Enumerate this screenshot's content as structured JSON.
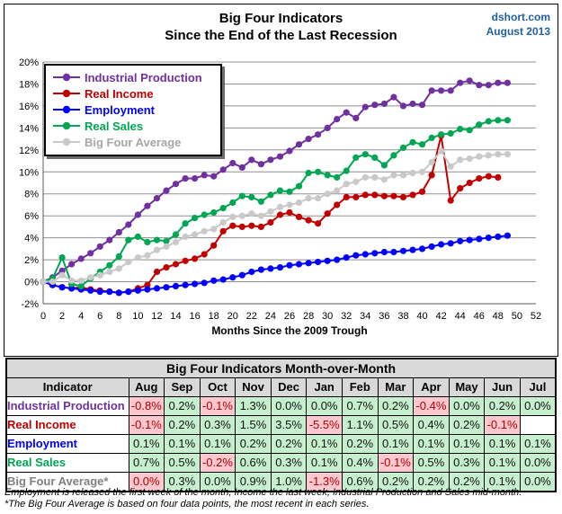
{
  "header": {
    "title_line1": "Big Four Indicators",
    "title_line2": "Since the End of the Last Recession",
    "source": "dshort.com",
    "date": "August 2013"
  },
  "chart_data": {
    "type": "line",
    "title": "Big Four Indicators Since the End of the Last Recession",
    "xlabel": "Months Since the 2009 Trough",
    "ylabel": "",
    "xlim": [
      0,
      52
    ],
    "ylim": [
      -2,
      20
    ],
    "x_tick_step": 2,
    "y_tick_step": 2,
    "grid": "horizontal",
    "legend_position": "top-left",
    "x": [
      0,
      1,
      2,
      3,
      4,
      5,
      6,
      7,
      8,
      9,
      10,
      11,
      12,
      13,
      14,
      15,
      16,
      17,
      18,
      19,
      20,
      21,
      22,
      23,
      24,
      25,
      26,
      27,
      28,
      29,
      30,
      31,
      32,
      33,
      34,
      35,
      36,
      37,
      38,
      39,
      40,
      41,
      42,
      43,
      44,
      45,
      46,
      47,
      48,
      49
    ],
    "series": [
      {
        "name": "Industrial Production",
        "color": "#7030A0",
        "values": [
          0.0,
          0.4,
          1.0,
          1.6,
          2.1,
          2.6,
          3.2,
          3.8,
          4.5,
          5.2,
          6.1,
          6.9,
          7.6,
          8.3,
          8.9,
          9.4,
          9.4,
          9.7,
          9.6,
          10.2,
          10.8,
          10.4,
          11.1,
          10.7,
          11.1,
          11.4,
          11.9,
          12.5,
          13.0,
          13.4,
          14.0,
          14.8,
          15.4,
          14.9,
          15.9,
          16.1,
          16.2,
          16.8,
          16.0,
          16.2,
          16.1,
          17.4,
          17.4,
          17.4,
          18.1,
          18.3,
          17.9,
          17.9,
          18.1,
          18.1
        ]
      },
      {
        "name": "Real Income",
        "color": "#C00000",
        "values": [
          0.0,
          -0.3,
          -0.5,
          -0.6,
          -0.5,
          -0.7,
          -0.8,
          -0.9,
          -1.0,
          -0.9,
          -0.6,
          -0.3,
          0.9,
          1.3,
          1.6,
          1.9,
          2.1,
          2.5,
          3.3,
          4.6,
          5.1,
          5.0,
          5.1,
          5.0,
          5.4,
          6.1,
          6.3,
          5.9,
          5.6,
          5.3,
          6.2,
          7.0,
          7.7,
          7.7,
          7.9,
          7.9,
          7.8,
          7.8,
          7.7,
          7.9,
          8.2,
          9.7,
          13.3,
          7.4,
          8.5,
          9.0,
          9.4,
          9.6,
          9.5,
          null
        ]
      },
      {
        "name": "Employment",
        "color": "#0000FF",
        "values": [
          0.0,
          -0.3,
          -0.5,
          -0.6,
          -0.7,
          -0.8,
          -0.9,
          -0.9,
          -1.0,
          -0.9,
          -0.8,
          -0.7,
          -0.6,
          -0.5,
          -0.4,
          -0.3,
          -0.2,
          -0.1,
          0.1,
          0.2,
          0.4,
          0.6,
          0.9,
          1.1,
          1.2,
          1.3,
          1.5,
          1.6,
          1.7,
          1.8,
          1.9,
          2.0,
          2.2,
          2.4,
          2.5,
          2.6,
          2.7,
          2.7,
          2.8,
          2.9,
          3.0,
          3.2,
          3.4,
          3.5,
          3.7,
          3.8,
          3.9,
          4.0,
          4.1,
          4.2
        ]
      },
      {
        "name": "Real Sales",
        "color": "#00A651",
        "values": [
          0.0,
          0.3,
          2.2,
          -0.2,
          -0.4,
          0.3,
          0.9,
          1.5,
          2.3,
          3.8,
          4.1,
          3.6,
          3.8,
          3.7,
          4.3,
          5.3,
          5.8,
          6.1,
          6.3,
          6.7,
          7.2,
          7.8,
          7.7,
          7.3,
          7.9,
          8.3,
          8.2,
          8.7,
          9.9,
          10.0,
          9.7,
          9.5,
          10.1,
          11.3,
          11.6,
          11.3,
          10.6,
          11.5,
          12.2,
          12.7,
          12.5,
          13.1,
          13.4,
          13.5,
          13.9,
          13.8,
          14.3,
          14.6,
          14.7,
          14.7
        ]
      },
      {
        "name": "Big Four Average",
        "color": "#C9C9C9",
        "text_color": "#A6A6A6",
        "values": [
          0.0,
          0.0,
          0.6,
          0.1,
          0.1,
          0.4,
          0.6,
          0.9,
          1.2,
          1.8,
          2.2,
          2.4,
          2.9,
          3.2,
          3.6,
          4.1,
          4.3,
          4.6,
          4.8,
          5.4,
          5.9,
          6.0,
          6.2,
          6.0,
          6.4,
          6.8,
          7.0,
          7.2,
          7.6,
          7.6,
          8.0,
          8.3,
          8.9,
          9.1,
          9.5,
          9.5,
          9.3,
          9.7,
          9.7,
          9.9,
          10.0,
          10.9,
          11.9,
          10.5,
          11.1,
          11.2,
          11.4,
          11.5,
          11.6,
          11.6
        ]
      }
    ]
  },
  "table": {
    "title": "Big Four Indicators Month-over-Month",
    "columns": [
      "Indicator",
      "Aug",
      "Sep",
      "Oct",
      "Nov",
      "Dec",
      "Jan",
      "Feb",
      "Mar",
      "Apr",
      "May",
      "Jun",
      "Jul"
    ],
    "rows": [
      {
        "label": "Industrial Production",
        "label_color": "#7030A0",
        "values": [
          "-0.8%",
          "0.2%",
          "-0.1%",
          "1.3%",
          "0.0%",
          "0.0%",
          "0.7%",
          "0.2%",
          "-0.4%",
          "0.0%",
          "0.2%",
          "0.0%"
        ],
        "cell_colors": [
          "r",
          "g",
          "r",
          "g",
          "g",
          "g",
          "g",
          "g",
          "r",
          "g",
          "g",
          "g"
        ]
      },
      {
        "label": "Real Income",
        "label_color": "#C00000",
        "values": [
          "-0.1%",
          "0.2%",
          "0.3%",
          "1.5%",
          "3.5%",
          "-5.5%",
          "1.1%",
          "0.5%",
          "0.4%",
          "0.2%",
          "-0.1%",
          ""
        ],
        "cell_colors": [
          "r",
          "g",
          "g",
          "g",
          "g",
          "r",
          "g",
          "g",
          "g",
          "g",
          "r",
          "w"
        ]
      },
      {
        "label": "Employment",
        "label_color": "#0000FF",
        "values": [
          "0.1%",
          "0.1%",
          "0.1%",
          "0.2%",
          "0.2%",
          "0.1%",
          "0.2%",
          "0.1%",
          "0.1%",
          "0.1%",
          "0.1%",
          "0.1%"
        ],
        "cell_colors": [
          "g",
          "g",
          "g",
          "g",
          "g",
          "g",
          "g",
          "g",
          "g",
          "g",
          "g",
          "g"
        ]
      },
      {
        "label": "Real Sales",
        "label_color": "#00A651",
        "values": [
          "0.7%",
          "0.5%",
          "-0.2%",
          "0.6%",
          "0.3%",
          "0.1%",
          "0.4%",
          "-0.1%",
          "0.5%",
          "0.3%",
          "0.1%",
          "0.0%"
        ],
        "cell_colors": [
          "g",
          "g",
          "r",
          "g",
          "g",
          "g",
          "g",
          "r",
          "g",
          "g",
          "g",
          "g"
        ]
      },
      {
        "label": "Big Four Average*",
        "label_color": "#808080",
        "values": [
          "0.0%",
          "0.3%",
          "0.0%",
          "0.9%",
          "1.0%",
          "-1.3%",
          "0.6%",
          "0.2%",
          "0.2%",
          "0.2%",
          "0.1%",
          "0.0%"
        ],
        "cell_colors": [
          "r",
          "g",
          "g",
          "g",
          "g",
          "r",
          "g",
          "g",
          "g",
          "g",
          "g",
          "g"
        ]
      }
    ]
  },
  "footnotes": [
    "Employment is released the first week of the month, Income the last week, Industrial Production and Sales mid-month.",
    "*The Big Four Average is based on four data points, the most recent in each series."
  ]
}
